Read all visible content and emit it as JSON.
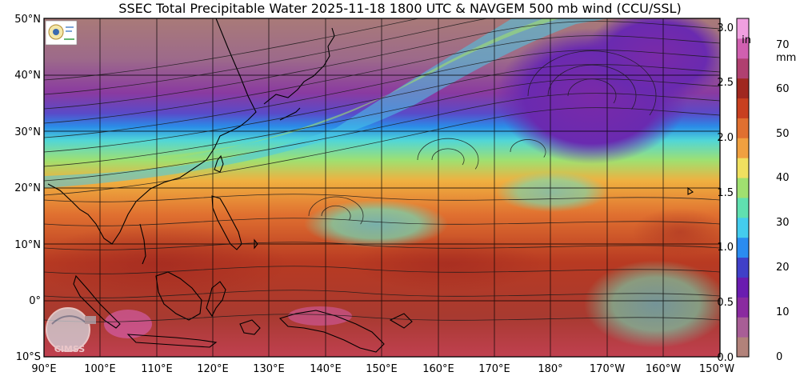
{
  "title": "SSEC Total Precipitable Water  2025-11-18 1800 UTC & NAVGEM 500 mb wind (CCU/SSL)",
  "lat_labels": [
    "50°N",
    "40°N",
    "30°N",
    "20°N",
    "10°N",
    "0°",
    "10°S"
  ],
  "lon_labels": [
    "90°E",
    "100°E",
    "110°E",
    "120°E",
    "130°E",
    "140°E",
    "150°E",
    "160°E",
    "170°E",
    "180°",
    "170°W",
    "160°W",
    "150°W"
  ],
  "map_extent": {
    "lon_min": 90,
    "lon_max": 210,
    "lat_min": -10,
    "lat_max": 50
  },
  "colorbar": {
    "inch_ticks": [
      "3.0",
      "2.5",
      "2.0",
      "1.5",
      "1.0",
      "0.5",
      "0.0"
    ],
    "inch_unit": "in",
    "mm_ticks": [
      "70",
      "60",
      "50",
      "40",
      "30",
      "20",
      "10",
      "0"
    ],
    "mm_unit": "mm",
    "range_mm": [
      0,
      76
    ],
    "colors": [
      "#b2827a",
      "#a85e96",
      "#8a2aa0",
      "#6a1cb0",
      "#4040c8",
      "#2a8cf0",
      "#44ccee",
      "#60e0b0",
      "#a0e070",
      "#f0e060",
      "#f0a040",
      "#e07030",
      "#c84020",
      "#a02820",
      "#b04070",
      "#d060b0",
      "#f0a0e0"
    ]
  },
  "logos": {
    "top_left": "SSEC / CIMSS / SSL logo",
    "bottom_left": "CIMSS"
  },
  "colors": {
    "frame": "#000000",
    "coast": "#000000",
    "grid": "#000000"
  }
}
